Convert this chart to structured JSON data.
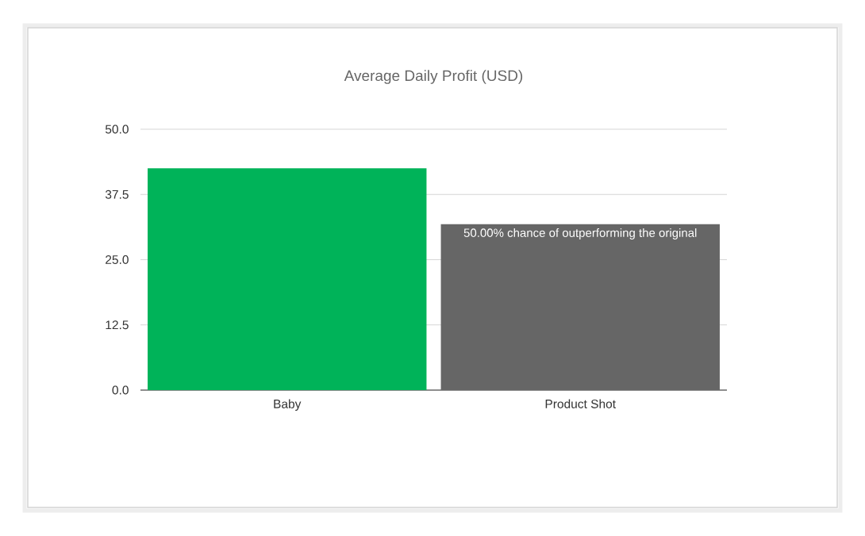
{
  "chart_data": {
    "type": "bar",
    "title": "Average Daily Profit (USD)",
    "categories": [
      "Baby",
      "Product Shot"
    ],
    "values": [
      42.5,
      31.8
    ],
    "colors": [
      "#00b359",
      "#666666"
    ],
    "ylim": [
      0,
      50
    ],
    "yticks": [
      {
        "value": 0,
        "label": "0.0"
      },
      12.5,
      {
        "value": 25,
        "label": "25.0"
      },
      37.5,
      {
        "value": 50,
        "label": "50.0"
      }
    ],
    "grid": "y",
    "annotations": [
      {
        "text": "50.00% chance of outperforming the original",
        "x": "Product Shot",
        "y": 31.8
      }
    ]
  }
}
